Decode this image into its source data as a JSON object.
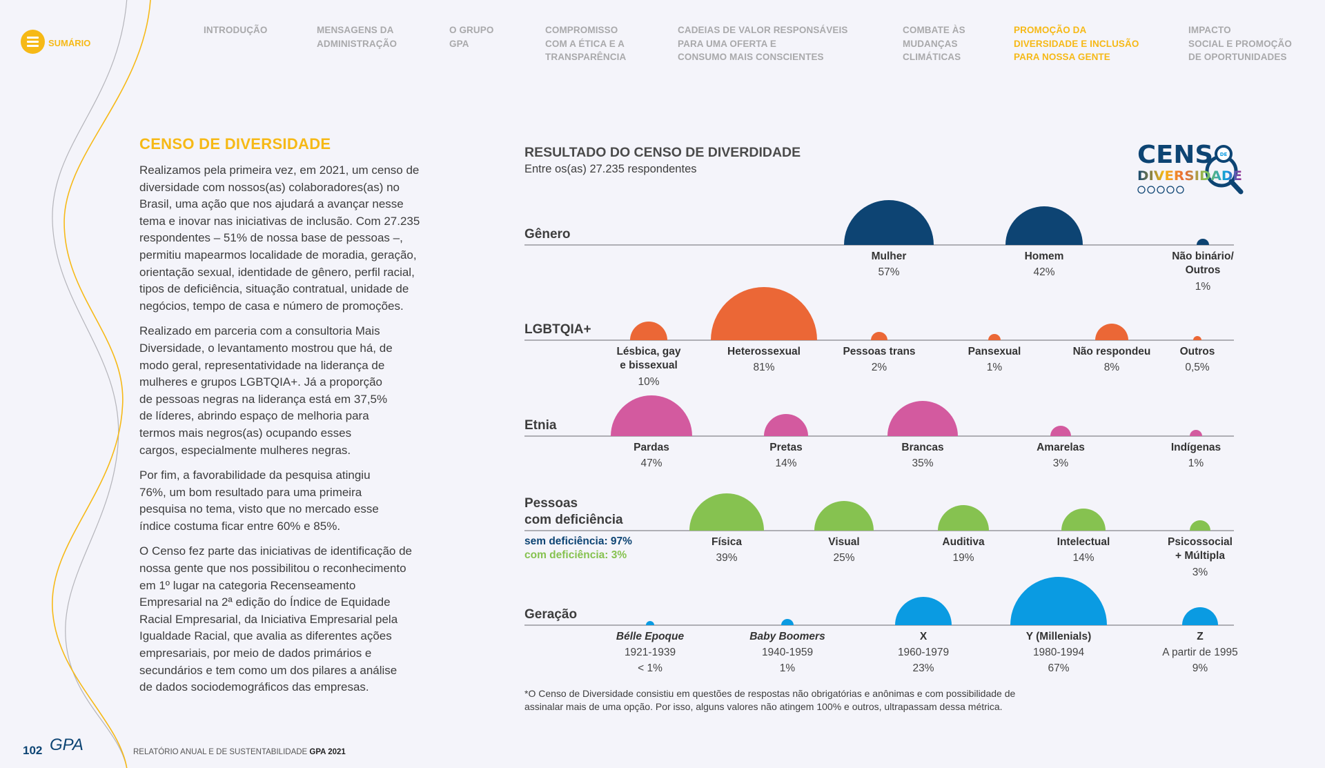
{
  "menu": {
    "label": "SUMÁRIO",
    "icon": "hamburger-icon"
  },
  "nav": [
    {
      "label": "INTRODUÇÃO",
      "active": false
    },
    {
      "label": "MENSAGENS DA\nADMINISTRAÇÃO",
      "active": false
    },
    {
      "label": "O GRUPO\nGPA",
      "active": false
    },
    {
      "label": "COMPROMISSO\nCOM A ÉTICA E A\nTRANSPARÊNCIA",
      "active": false
    },
    {
      "label": "CADEIAS DE VALOR  RESPONSÁVEIS\nPARA UMA OFERTA E\n CONSUMO MAIS CONSCIENTES",
      "active": false
    },
    {
      "label": "COMBATE ÀS\nMUDANÇAS\nCLIMÁTICAS",
      "active": false
    },
    {
      "label": "PROMOÇÃO DA\nDIVERSIDADE E INCLUSÃO\nPARA NOSSA GENTE",
      "active": true
    },
    {
      "label": "IMPACTO\nSOCIAL E PROMOÇÃO\nDE OPORTUNIDADES",
      "active": false
    }
  ],
  "left": {
    "title": "CENSO DE DIVERSIDADE",
    "paragraphs": [
      "Realizamos pela primeira vez, em 2021, um censo de\ndiversidade com nossos(as) colaboradores(as) no\nBrasil, uma ação que nos ajudará a avançar nesse\ntema e inovar nas iniciativas de inclusão. Com 27.235\nrespondentes – 51% de nossa base de pessoas –,\npermitiu mapearmos localidade de moradia, geração,\norientação sexual, identidade de gênero, perfil racial,\ntipos de deficiência, situação contratual, unidade de\nnegócios, tempo de casa e número de promoções.",
      "Realizado em parceria com a consultoria Mais\nDiversidade, o levantamento mostrou que há, de\nmodo geral, representatividade na liderança de\nmulheres e grupos LGBTQIA+. Já a proporção\nde pessoas negras na liderança está em 37,5%\nde líderes, abrindo espaço de melhoria para\ntermos mais negros(as) ocupando esses\ncargos, especialmente mulheres negras.",
      "Por fim, a favorabilidade da pesquisa atingiu\n76%, um bom resultado para uma primeira\npesquisa no tema, visto que no mercado esse\níndice costuma ficar entre 60% e 85%.",
      "O Censo fez parte das iniciativas de identificação de\nnossa gente que nos possibilitou o reconhecimento\nem 1º lugar na categoria Recenseamento\nEmpresarial na 2ª edição do Índice de Equidade\nRacial Empresarial, da Iniciativa Empresarial pela\nIgualdade Racial, que avalia as diferentes ações\nempresariais, por meio de dados primários e\nsecundários e tem como um dos pilares a análise\nde dados sociodemográficos das empresas."
    ]
  },
  "logo": {
    "line1": "CENSO",
    "badge": "DE",
    "line2": "DIVERSIDADE"
  },
  "chart_data": {
    "type": "semicircle-bubble",
    "title": "RESULTADO DO CENSO DE DIVERDIDADE",
    "subtitle": "Entre os(as) 27.235 respondentes",
    "series": [
      {
        "name": "Gênero",
        "color": "#0d4473",
        "items": [
          {
            "label": "Mulher",
            "value": 57,
            "display": "57%"
          },
          {
            "label": "Homem",
            "value": 42,
            "display": "42%"
          },
          {
            "label": "Não binário/\nOutros",
            "value": 1,
            "display": "1%"
          }
        ]
      },
      {
        "name": "LGBTQIA+",
        "color": "#eb6736",
        "items": [
          {
            "label": "Lésbica, gay\ne bissexual",
            "value": 10,
            "display": "10%"
          },
          {
            "label": "Heterossexual",
            "value": 81,
            "display": "81%"
          },
          {
            "label": "Pessoas trans",
            "value": 2,
            "display": "2%"
          },
          {
            "label": "Pansexual",
            "value": 1,
            "display": "1%"
          },
          {
            "label": "Não respondeu",
            "value": 8,
            "display": "8%"
          },
          {
            "label": "Outros",
            "value": 0.5,
            "display": "0,5%"
          }
        ]
      },
      {
        "name": "Etnia",
        "color": "#d35a9f",
        "items": [
          {
            "label": "Pardas",
            "value": 47,
            "display": "47%"
          },
          {
            "label": "Pretas",
            "value": 14,
            "display": "14%"
          },
          {
            "label": "Brancas",
            "value": 35,
            "display": "35%"
          },
          {
            "label": "Amarelas",
            "value": 3,
            "display": "3%"
          },
          {
            "label": "Indígenas",
            "value": 1,
            "display": "1%"
          }
        ]
      },
      {
        "name": "Pessoas\ncom deficiência",
        "color": "#86c250",
        "items": [
          {
            "label": "Física",
            "value": 39,
            "display": "39%"
          },
          {
            "label": "Visual",
            "value": 25,
            "display": "25%"
          },
          {
            "label": "Auditiva",
            "value": 19,
            "display": "19%"
          },
          {
            "label": "Intelectual",
            "value": 14,
            "display": "14%"
          },
          {
            "label": "Psicossocial\n+ Múltipla",
            "value": 3,
            "display": "3%"
          }
        ]
      },
      {
        "name": "Geração",
        "color": "#0a9be2",
        "items": [
          {
            "label": "Bélle Epoque",
            "italic": true,
            "value": 0.5,
            "display": "1921-1939\n< 1%"
          },
          {
            "label": "Baby Boomers",
            "italic": true,
            "value": 1,
            "display": "1940-1959\n1%"
          },
          {
            "label": "X",
            "value": 23,
            "display": "1960-1979\n23%"
          },
          {
            "label": "Y (Millenials)",
            "value": 67,
            "display": "1980-1994\n67%"
          },
          {
            "label": "Z",
            "value": 9,
            "display": "A partir de 1995\n9%"
          }
        ]
      }
    ],
    "legend": {
      "without": "sem deficiência: 97%",
      "with": "com deficiência: 3%",
      "without_color": "#0d4473",
      "with_color": "#86c250"
    }
  },
  "footnote": "*O Censo de Diversidade consistiu em questões de respostas não obrigatórias e anônimas e com possibilidade de\nassinalar mais de uma opção. Por isso, alguns valores não atingem 100% e outros, ultrapassam dessa métrica.",
  "footer": {
    "page": "102",
    "brand": "GPA",
    "report": "RELATÓRIO ANUAL E DE SUSTENTABILIDADE ",
    "report_bold": "GPA 2021"
  },
  "colors": {
    "accent": "#f6b916",
    "navy": "#0d4473",
    "background": "#f4f4fa"
  }
}
